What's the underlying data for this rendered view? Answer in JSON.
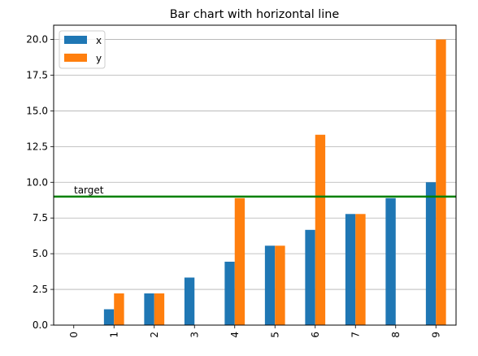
{
  "chart_data": {
    "type": "bar",
    "title": "Bar chart with horizontal line",
    "categories": [
      "0",
      "1",
      "2",
      "3",
      "4",
      "5",
      "6",
      "7",
      "8",
      "9"
    ],
    "series": [
      {
        "name": "x",
        "color": "#1f77b4",
        "values": [
          0,
          1.11,
          2.22,
          3.33,
          4.44,
          5.56,
          6.67,
          7.78,
          8.89,
          10.0
        ]
      },
      {
        "name": "y",
        "color": "#ff7f0e",
        "values": [
          0,
          2.22,
          2.22,
          0,
          8.89,
          5.56,
          13.33,
          7.78,
          0,
          20.0
        ]
      }
    ],
    "ylim": [
      0,
      21
    ],
    "yticks": [
      0.0,
      2.5,
      5.0,
      7.5,
      10.0,
      12.5,
      15.0,
      17.5,
      20.0
    ],
    "ytick_labels": [
      "0.0",
      "2.5",
      "5.0",
      "7.5",
      "10.0",
      "12.5",
      "15.0",
      "17.5",
      "20.0"
    ],
    "grid": "y",
    "legend_position": "top-left",
    "hline": {
      "value": 9,
      "label": "target",
      "color": "#008000"
    }
  }
}
